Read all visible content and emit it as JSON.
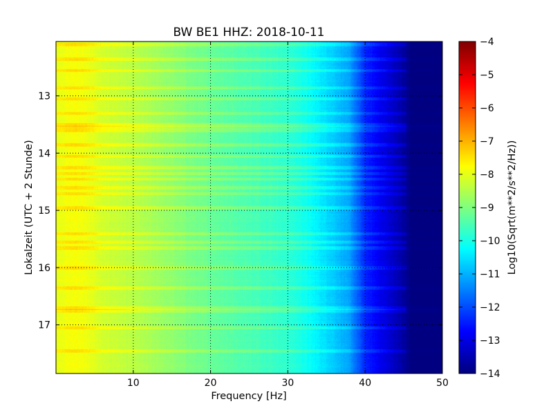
{
  "chart_data": {
    "type": "heatmap",
    "title": "BW BE1 HHZ: 2018-10-11",
    "xlabel": "Frequency [Hz]",
    "ylabel": "Lokalzeit (UTC + 2 Stunde)",
    "xlim": [
      0,
      50
    ],
    "ylim": [
      12.05,
      17.85
    ],
    "y_inverted": true,
    "x_ticks": [
      10,
      20,
      30,
      40,
      50
    ],
    "x_tick_labels": [
      "10",
      "20",
      "30",
      "40",
      "50"
    ],
    "y_ticks": [
      13,
      14,
      15,
      16,
      17
    ],
    "y_tick_labels": [
      "13",
      "14",
      "15",
      "16",
      "17"
    ],
    "grid": true,
    "colormap": "jet",
    "colorbar": {
      "label": "Log10(Sqrt(m**2/s**2/Hz))",
      "range": [
        -14,
        -4
      ],
      "ticks": [
        -4,
        -5,
        -6,
        -7,
        -8,
        -9,
        -10,
        -11,
        -12,
        -13,
        -14
      ],
      "tick_labels": [
        "−4",
        "−5",
        "−6",
        "−7",
        "−8",
        "−9",
        "−10",
        "−11",
        "−12",
        "−13",
        "−14"
      ]
    },
    "spectrum_profile": {
      "frequency_hz": [
        0,
        2,
        4,
        6,
        8,
        10,
        14,
        18,
        22,
        26,
        30,
        32,
        34,
        36,
        38,
        40,
        42,
        44,
        46,
        48,
        50
      ],
      "log10_amplitude": [
        -8.0,
        -7.8,
        -7.9,
        -8.2,
        -8.3,
        -8.45,
        -8.75,
        -9.1,
        -9.35,
        -9.55,
        -9.8,
        -10.05,
        -10.4,
        -10.75,
        -11.2,
        -12.4,
        -12.9,
        -13.4,
        -14.0,
        -14.0,
        -14.0
      ]
    },
    "bright_bands_hours": [
      12.1,
      12.35,
      12.55,
      12.85,
      13.05,
      13.3,
      13.5,
      13.55,
      13.6,
      13.85,
      14.05,
      14.25,
      14.35,
      14.45,
      14.6,
      14.7,
      14.95,
      15.4,
      15.55,
      15.65,
      16.0,
      16.35,
      16.7,
      16.75,
      17.05,
      17.45
    ]
  }
}
